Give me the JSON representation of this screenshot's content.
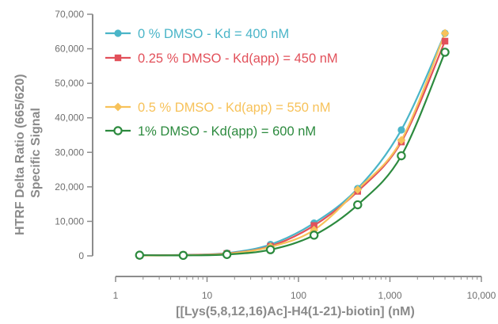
{
  "chart_data": {
    "type": "scatter",
    "title": "",
    "xlabel": "[[Lys(5,8,12,16)Ac]-H4(1-21)-biotin] (nM)",
    "ylabel": "HTRF Delta Ratio (665/620) Specific Signal",
    "ylabel_lines": [
      "HTRF Delta Ratio (665/620)",
      "Specific Signal"
    ],
    "x_scale": "log",
    "xlim": [
      1,
      10000
    ],
    "ylim": [
      0,
      70000
    ],
    "x_ticks": [
      1,
      10,
      100,
      1000,
      10000
    ],
    "x_tick_labels": [
      "1",
      "10",
      "100",
      "1,000",
      "10,000"
    ],
    "y_ticks": [
      0,
      10000,
      20000,
      30000,
      40000,
      50000,
      60000,
      70000
    ],
    "y_tick_labels": [
      "0",
      "10,000",
      "20,000",
      "30,000",
      "40,000",
      "50,000",
      "60,000",
      "70,000"
    ],
    "grid": false,
    "legend_position": "top-left",
    "x": [
      1.83,
      5.49,
      16.5,
      49.4,
      148,
      444,
      1333,
      4000
    ],
    "series": [
      {
        "name": "0 % DMSO - Kd = 400 nM",
        "color": "#4ab5c8",
        "marker": "circle-filled",
        "values": [
          200,
          300,
          800,
          3300,
          9500,
          19500,
          36500,
          64500
        ]
      },
      {
        "name": "0.25 % DMSO - Kd(app) = 450 nM",
        "color": "#e2505a",
        "marker": "square-filled",
        "values": [
          150,
          250,
          700,
          2800,
          8800,
          18700,
          33000,
          62200
        ]
      },
      {
        "name": "0.5 % DMSO - Kd(app) = 550 nM",
        "color": "#f7c25a",
        "marker": "diamond-filled",
        "values": [
          100,
          200,
          600,
          2600,
          7500,
          19200,
          33500,
          64500
        ]
      },
      {
        "name": "1% DMSO - Kd(app) = 600 nM",
        "color": "#2c8a3e",
        "marker": "circle-open",
        "values": [
          200,
          150,
          400,
          1800,
          6000,
          14800,
          29000,
          59000
        ]
      }
    ]
  }
}
